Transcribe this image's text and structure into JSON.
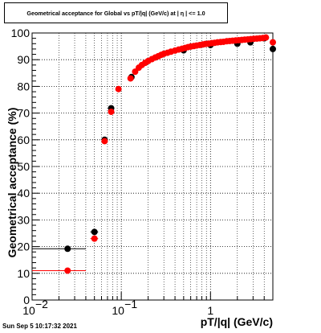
{
  "title": "Geometrical acceptance for Global vs pT/|q| (GeV/c) at |  η  | <= 1.0",
  "timestamp": "Sun Sep  5 10:17:32 2021",
  "chart_data": {
    "type": "scatter",
    "title": "Geometrical acceptance for Global vs pT/|q| (GeV/c) at |  η  | <= 1.0",
    "xlabel": "pT/|q| (GeV/c)",
    "ylabel": "Geometrical acceptance (%)",
    "x_scale": "log",
    "xlim": [
      0.01,
      5.0
    ],
    "ylim": [
      0,
      100
    ],
    "x_ticks": [
      {
        "value": 0.01,
        "label": "10",
        "exp": "−2"
      },
      {
        "value": 0.1,
        "label": "10",
        "exp": "−1"
      },
      {
        "value": 1,
        "label": "1",
        "exp": ""
      }
    ],
    "y_ticks": [
      "0",
      "10",
      "20",
      "30",
      "40",
      "50",
      "60",
      "70",
      "80",
      "90",
      "100"
    ],
    "grid": true,
    "series": [
      {
        "color": "#000000",
        "marker": "circle",
        "x": [
          0.025,
          0.05,
          0.065,
          0.077,
          0.13,
          0.5,
          1.0,
          2.0,
          2.8,
          4.0,
          5.0
        ],
        "xerr_low": [
          0.015,
          0.005,
          0.002,
          0.002,
          0,
          0,
          0,
          0,
          0,
          0,
          0
        ],
        "xerr_high": [
          0.015,
          0.005,
          0.002,
          0.002,
          0,
          0,
          0,
          0,
          0,
          0,
          0
        ],
        "y": [
          19.2,
          25.5,
          60.0,
          71.8,
          83.5,
          93.5,
          95.5,
          96.0,
          96.5,
          98.0,
          94.0
        ]
      },
      {
        "color": "#ff0000",
        "marker": "circle",
        "x": [
          0.025,
          0.05,
          0.065,
          0.077,
          0.093,
          0.127,
          0.143,
          0.157,
          0.17,
          0.185,
          0.2,
          0.22,
          0.24,
          0.26,
          0.28,
          0.3,
          0.33,
          0.36,
          0.4,
          0.44,
          0.48,
          0.52,
          0.56,
          0.6,
          0.65,
          0.7,
          0.76,
          0.82,
          0.88,
          0.95,
          1.03,
          1.11,
          1.2,
          1.3,
          1.4,
          1.52,
          1.64,
          1.77,
          1.92,
          2.07,
          2.24,
          2.42,
          2.62,
          2.83,
          3.06,
          3.31,
          3.58,
          3.87,
          4.18,
          5.0
        ],
        "xerr_low": [
          0.015,
          0.005,
          0.002,
          0.002,
          0.003,
          0.003,
          0.004,
          0.004,
          0.005,
          0.005,
          0.006,
          0.006,
          0.007,
          0.007,
          0.008,
          0.008,
          0.009,
          0.01,
          0.011,
          0.012,
          0.013,
          0.014,
          0.015,
          0.016,
          0.018,
          0.019,
          0.021,
          0.022,
          0.024,
          0.026,
          0.028,
          0.03,
          0.033,
          0.035,
          0.038,
          0.041,
          0.045,
          0.048,
          0.052,
          0.056,
          0.061,
          0.066,
          0.071,
          0.077,
          0.083,
          0.09,
          0.097,
          0.105,
          0.113,
          0.15
        ],
        "xerr_high": [
          0.015,
          0.005,
          0.002,
          0.002,
          0.003,
          0.003,
          0.004,
          0.004,
          0.005,
          0.005,
          0.006,
          0.006,
          0.007,
          0.007,
          0.008,
          0.008,
          0.009,
          0.01,
          0.011,
          0.012,
          0.013,
          0.014,
          0.015,
          0.016,
          0.018,
          0.019,
          0.021,
          0.022,
          0.024,
          0.026,
          0.028,
          0.03,
          0.033,
          0.035,
          0.038,
          0.041,
          0.045,
          0.048,
          0.052,
          0.056,
          0.061,
          0.066,
          0.071,
          0.077,
          0.083,
          0.09,
          0.097,
          0.105,
          0.113,
          0.15
        ],
        "y": [
          11.0,
          23.0,
          59.5,
          70.5,
          79.0,
          83.0,
          85.5,
          87.0,
          88.0,
          88.8,
          89.5,
          90.2,
          90.8,
          91.3,
          91.8,
          92.2,
          92.6,
          93.0,
          93.4,
          93.8,
          94.1,
          94.4,
          94.7,
          94.9,
          95.1,
          95.3,
          95.5,
          95.7,
          95.9,
          96.0,
          96.2,
          96.3,
          96.5,
          96.6,
          96.7,
          96.9,
          97.0,
          97.1,
          97.2,
          97.3,
          97.4,
          97.5,
          97.6,
          97.7,
          97.8,
          97.9,
          98.0,
          98.1,
          98.3,
          96.5
        ]
      }
    ]
  }
}
